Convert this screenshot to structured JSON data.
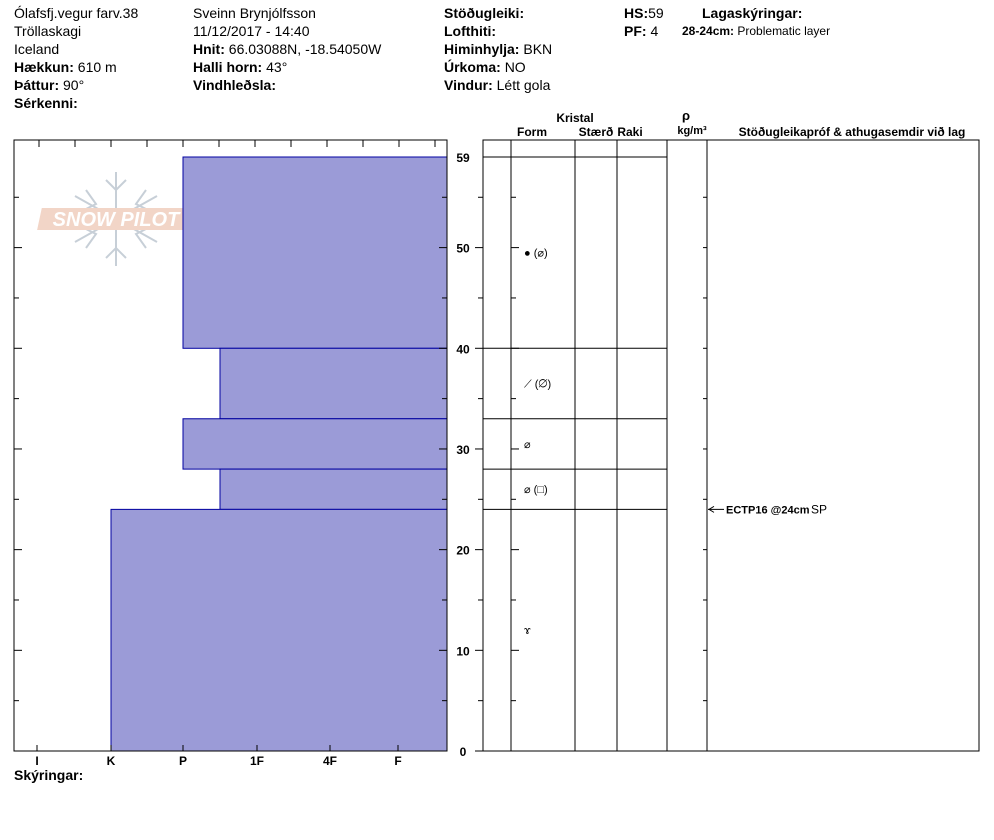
{
  "header": {
    "location": "Ólafsfj.vegur farv.38",
    "region": "Tröllaskagi",
    "country": "Iceland",
    "elevation_label": "Hækkun:",
    "elevation": "610 m",
    "aspect_label": "Þáttur:",
    "aspect": "90°",
    "features_label": "Sérkenni:",
    "observer": "Sveinn Brynjólfsson",
    "datetime": "11/12/2017 - 14:40",
    "coords_label": "Hnit:",
    "coords": "66.03088N, -18.54050W",
    "slope_label": "Halli horn:",
    "slope": "43°",
    "wind_loading_label": "Vindhleðsla:",
    "stability_label": "Stöðugleiki:",
    "air_temp_label": "Lofthiti:",
    "sky_label": "Himinhylja:",
    "sky": "BKN",
    "precip_label": "Úrkoma:",
    "precip": "NO",
    "wind_label": "Vindur:",
    "wind": "Létt gola",
    "hs_label": "HS:",
    "hs": "59",
    "pf_label": "PF:",
    "pf": "4",
    "layer_notes_label": "Lagaskýringar:",
    "layer_note_range": "28-24cm:",
    "layer_note_text": "Problematic layer"
  },
  "logo_text": "SNOW PILOT",
  "footer": {
    "notes_label": "Skýringar:"
  },
  "colors": {
    "layer_fill": "#9b9bd7",
    "layer_stroke": "#0000a0",
    "grid": "#000000"
  },
  "chart_data": {
    "type": "bar",
    "orientation": "horizontal-step",
    "title": "",
    "y_axis": {
      "range": [
        0,
        59
      ],
      "ticks": [
        0,
        10,
        20,
        30,
        40,
        50,
        59
      ]
    },
    "hardness_categories": [
      "I",
      "K",
      "P",
      "1F",
      "4F",
      "F"
    ],
    "layers": [
      {
        "top": 59,
        "bottom": 40,
        "hardness": "P"
      },
      {
        "top": 40,
        "bottom": 33,
        "hardness": "P-1F"
      },
      {
        "top": 33,
        "bottom": 28,
        "hardness": "P"
      },
      {
        "top": 28,
        "bottom": 24,
        "hardness": "P-1F"
      },
      {
        "top": 24,
        "bottom": 0,
        "hardness": "K"
      }
    ],
    "columns": {
      "crystal_group_label": "Kristal",
      "form_label": "Form",
      "size_label": "Stærð",
      "moisture_label": "Raki",
      "density_symbol": "ρ",
      "density_unit": "kg/m³",
      "tests_label": "Stöðugleikapróf & athugasemdir við lag"
    },
    "grain_symbols": [
      {
        "height": 49.5,
        "symbol": "● (⌀)"
      },
      {
        "height": 36.5,
        "symbol": "⟋ (⌀)"
      },
      {
        "height": 30.5,
        "symbol": "⌀"
      },
      {
        "height": 26,
        "symbol": "⌀ (□)"
      },
      {
        "height": 12,
        "symbol": "ɤ"
      }
    ],
    "tests": [
      {
        "height": 24,
        "text": "ECTP16 @24cm",
        "suffix": "SP"
      }
    ]
  }
}
